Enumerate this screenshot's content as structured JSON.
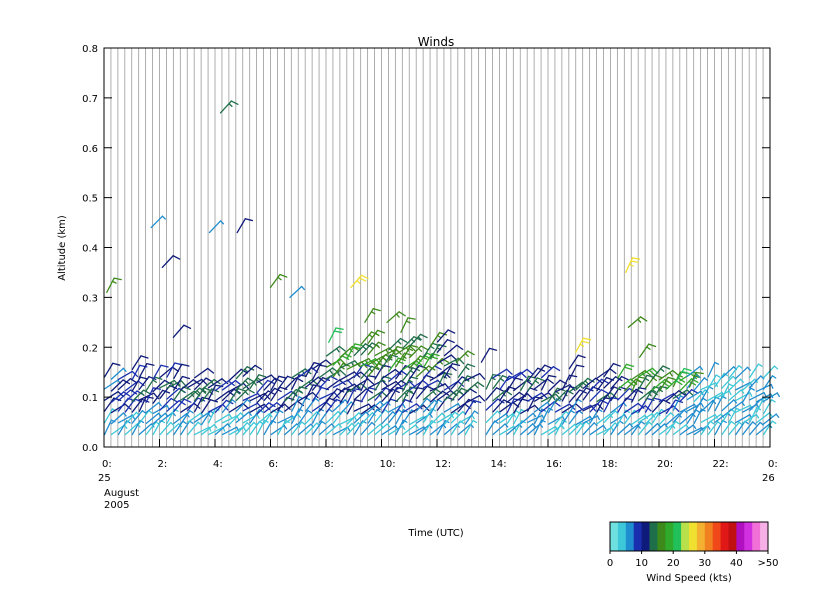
{
  "chart_data": {
    "type": "wind-barb time-height plot",
    "title": "Winds",
    "xlabel": "Time (UTC)",
    "ylabel": "Altitude (km)",
    "ylim": [
      0,
      0.8
    ],
    "xlim_hours": [
      0,
      24
    ],
    "y_ticks": [
      "0.0",
      "0.1",
      "0.2",
      "0.3",
      "0.4",
      "0.5",
      "0.6",
      "0.7",
      "0.8"
    ],
    "x_ticks": [
      "0:",
      "2:",
      "4:",
      "6:",
      "8:",
      "10:",
      "12:",
      "14:",
      "16:",
      "18:",
      "20:",
      "22:",
      "0:"
    ],
    "start_date_label": [
      "25",
      "August",
      "2005"
    ],
    "end_date_label": "26",
    "grid": "vertical lines every profile",
    "legend": {
      "title": "Wind Speed (kts)",
      "tick_labels": [
        "0",
        "10",
        "20",
        "30",
        "40",
        ">50"
      ],
      "bins_kts": [
        0,
        2.5,
        5,
        7.5,
        10,
        12.5,
        15,
        17.5,
        20,
        22.5,
        25,
        27.5,
        30,
        32.5,
        35,
        37.5,
        40,
        42.5,
        45,
        47.5,
        50
      ],
      "colors": [
        "#6fe0e0",
        "#3cc8d8",
        "#1f8ed0",
        "#1a2fb0",
        "#0f1b7a",
        "#1f6e4a",
        "#3d8a1a",
        "#2faa2a",
        "#22c05a",
        "#b8e04a",
        "#f0e030",
        "#f4b030",
        "#f08020",
        "#f04818",
        "#e01818",
        "#c01010",
        "#b010c0",
        "#d030e0",
        "#f070d8",
        "#f6b0e6"
      ]
    },
    "barbs_description": "Wind barbs at each ~15-min profile; dense layer 0.02-0.2 km, colored 0-20 kts mostly; sparse barbs aloft",
    "sample_barbs": [
      {
        "t": 0.1,
        "z": 0.31,
        "kts": 17
      },
      {
        "t": 1.7,
        "z": 0.44,
        "kts": 7
      },
      {
        "t": 2.1,
        "z": 0.36,
        "kts": 10
      },
      {
        "t": 2.5,
        "z": 0.22,
        "kts": 10
      },
      {
        "t": 3.8,
        "z": 0.43,
        "kts": 7
      },
      {
        "t": 4.2,
        "z": 0.67,
        "kts": 13
      },
      {
        "t": 4.8,
        "z": 0.43,
        "kts": 10
      },
      {
        "t": 6.0,
        "z": 0.32,
        "kts": 17
      },
      {
        "t": 6.7,
        "z": 0.3,
        "kts": 5
      },
      {
        "t": 8.1,
        "z": 0.21,
        "kts": 22
      },
      {
        "t": 8.9,
        "z": 0.32,
        "kts": 27
      },
      {
        "t": 9.4,
        "z": 0.25,
        "kts": 15
      },
      {
        "t": 10.2,
        "z": 0.25,
        "kts": 15
      },
      {
        "t": 10.7,
        "z": 0.23,
        "kts": 17
      },
      {
        "t": 12.7,
        "z": 0.17,
        "kts": 15
      },
      {
        "t": 13.6,
        "z": 0.17,
        "kts": 10
      },
      {
        "t": 17.0,
        "z": 0.19,
        "kts": 27
      },
      {
        "t": 18.8,
        "z": 0.35,
        "kts": 27
      },
      {
        "t": 18.9,
        "z": 0.24,
        "kts": 17
      },
      {
        "t": 19.3,
        "z": 0.18,
        "kts": 17
      },
      {
        "t": 20.6,
        "z": 0.13,
        "kts": 22
      },
      {
        "t": 21.1,
        "z": 0.12,
        "kts": 15
      }
    ]
  }
}
